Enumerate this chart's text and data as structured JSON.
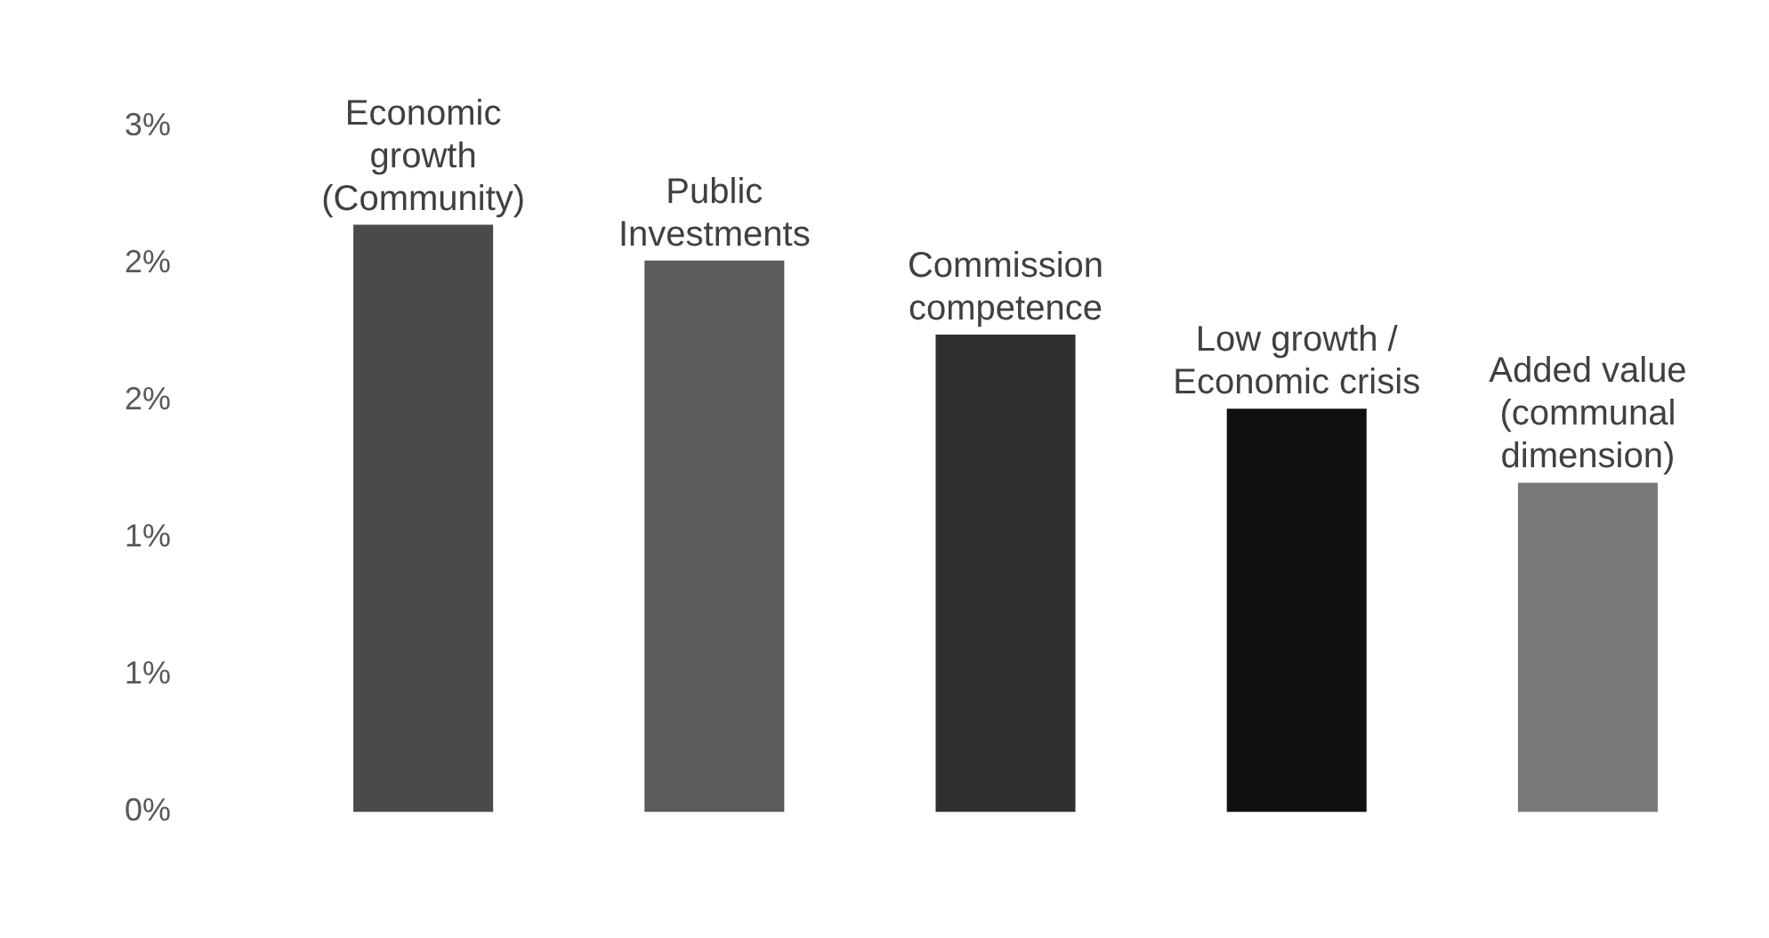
{
  "chart_data": {
    "type": "bar",
    "categories": [
      "Economic\ngrowth\n(Community)",
      "Public\nInvestments",
      "Commission\ncompetence",
      "Low growth /\nEconomic crisis",
      "Added value\n(communal\ndimension)"
    ],
    "values": [
      2.14,
      2.01,
      1.74,
      1.47,
      1.2
    ],
    "colors": [
      "#4a4a4a",
      "#5c5c5c",
      "#303030",
      "#111111",
      "#787878"
    ],
    "ylim": [
      0,
      2.5
    ],
    "yticks": [
      {
        "value": 0,
        "label": "0%"
      },
      {
        "value": 0.5,
        "label": "1%"
      },
      {
        "value": 1,
        "label": "1%"
      },
      {
        "value": 1.5,
        "label": "2%"
      },
      {
        "value": 2,
        "label": "2%"
      },
      {
        "value": 2.5,
        "label": "3%"
      }
    ],
    "grid": false,
    "legend": false
  }
}
